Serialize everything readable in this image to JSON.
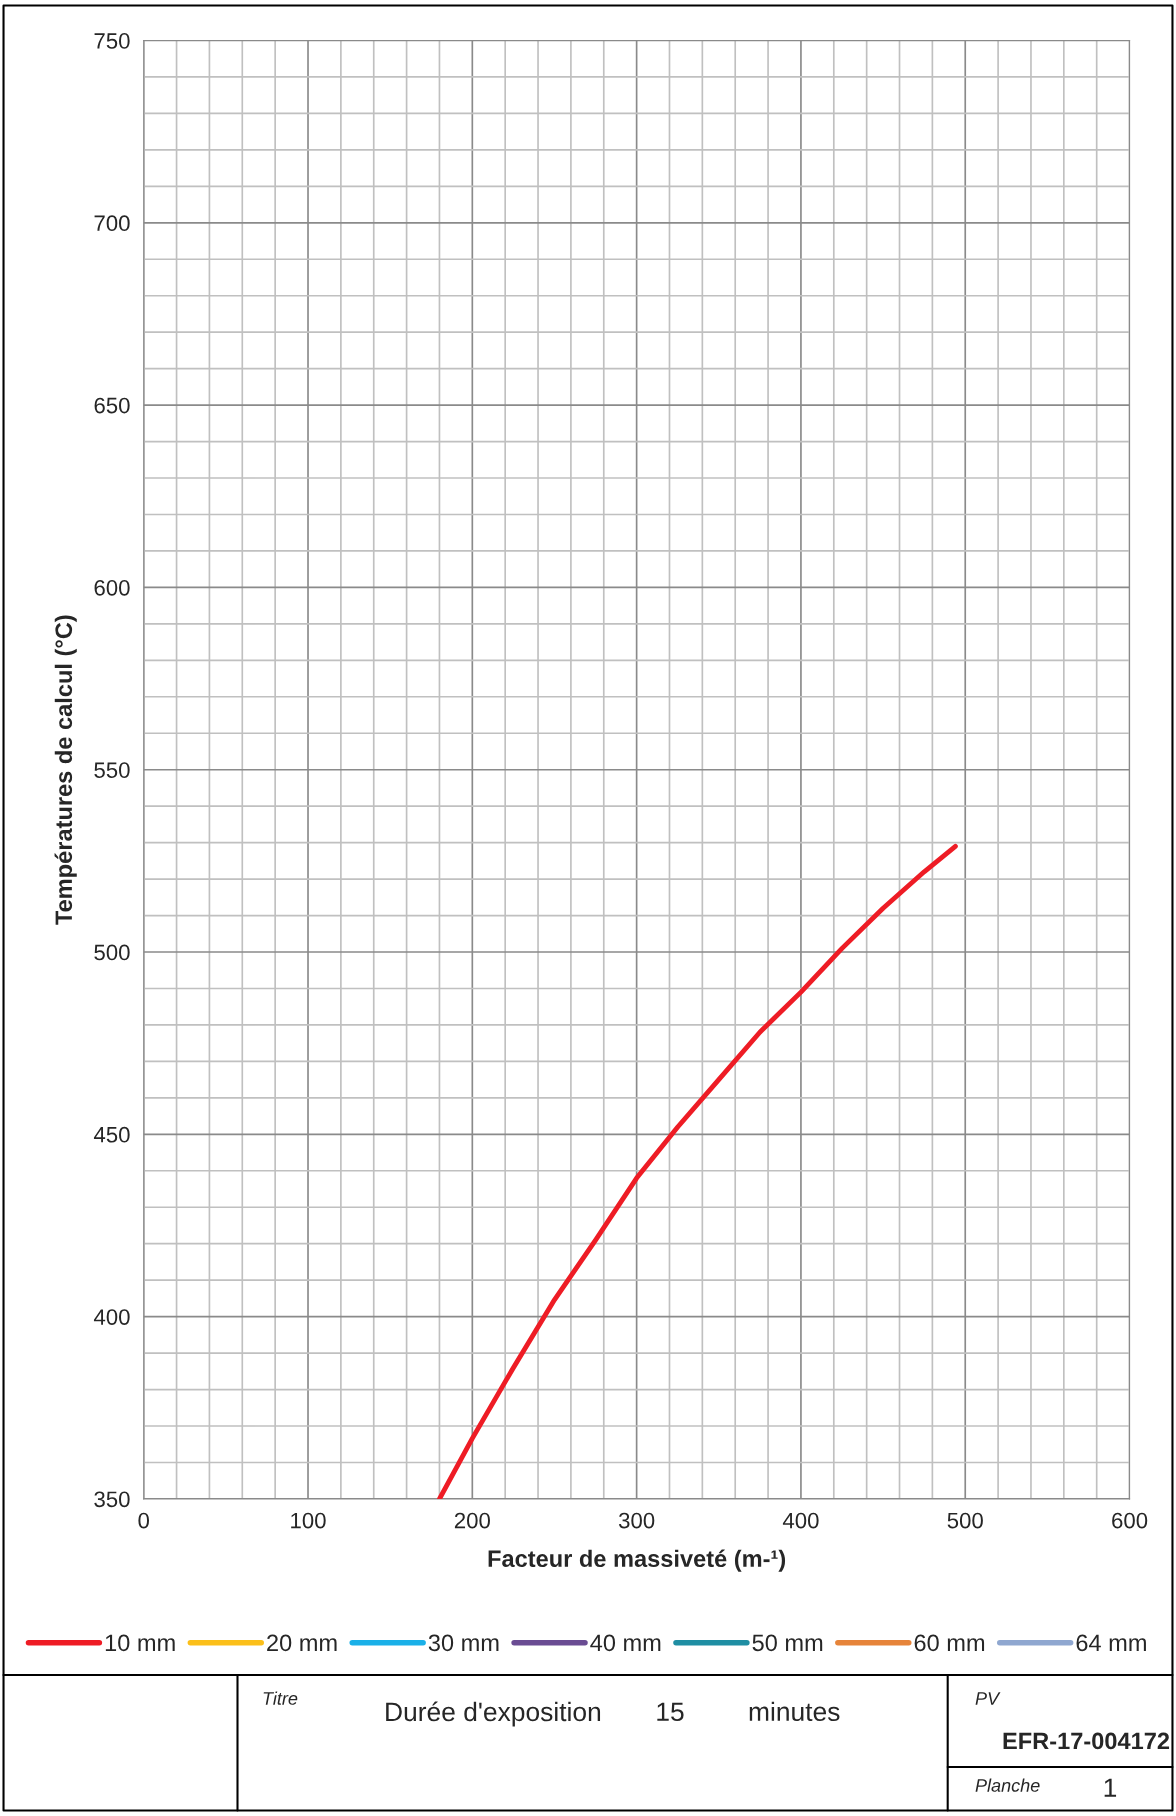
{
  "chart_data": {
    "type": "line",
    "xlabel": "Facteur de massiveté (m-¹)",
    "ylabel": "Températures de calcul (°C)",
    "xlim": [
      0,
      600
    ],
    "xticks": [
      0,
      100,
      200,
      300,
      400,
      500,
      600
    ],
    "ylim": [
      350,
      750
    ],
    "yticks": [
      350,
      400,
      450,
      500,
      550,
      600,
      650,
      700,
      750
    ],
    "grid": true,
    "legend": "bottom",
    "marker": "none",
    "line_style": "solid",
    "series": [
      {
        "name": "10 mm",
        "color": "#ee1c25",
        "x": [
          180,
          200,
          225,
          250,
          275,
          300,
          325,
          350,
          375,
          400,
          425,
          450,
          475,
          494
        ],
        "values": [
          350,
          366.6,
          386,
          404.6,
          421,
          438,
          452,
          465,
          478,
          489,
          501,
          512,
          522,
          529
        ]
      },
      {
        "name": "20 mm",
        "color": "#fbbf1a"
      },
      {
        "name": "30 mm",
        "color": "#1ab0e8"
      },
      {
        "name": "40 mm",
        "color": "#6a4c93"
      },
      {
        "name": "50 mm",
        "color": "#1f8ea3"
      },
      {
        "name": "60 mm",
        "color": "#e6843a"
      },
      {
        "name": "64 mm",
        "color": "#8fa7d0"
      }
    ],
    "annotations": [
      "Titre",
      "Durée d'exposition",
      "15",
      "minutes",
      "PV",
      "EFR-17-004172",
      "Planche",
      "1"
    ]
  }
}
